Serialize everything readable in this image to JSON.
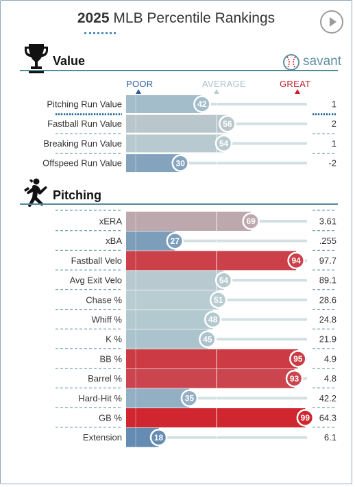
{
  "header": {
    "year": "2025",
    "title": "MLB Percentile Rankings"
  },
  "brand": {
    "name": "savant",
    "accent": "#5c8fa0"
  },
  "scale": {
    "poor": "POOR",
    "average": "AVERAGE",
    "great": "GREAT"
  },
  "colors": {
    "poor": "#2c5f9c",
    "average": "#b8cdd2",
    "great": "#d0202a",
    "track": "#d2e0e3",
    "rule": "#4e8a9a"
  },
  "sections": [
    {
      "label": "Value",
      "icon": "trophy-icon"
    },
    {
      "label": "Pitching",
      "icon": "pitcher-icon"
    }
  ],
  "chart_data": [
    {
      "type": "bar",
      "section": "Value",
      "xlim": [
        0,
        100
      ],
      "categories": [
        "Pitching Run Value",
        "Fastball Run Value",
        "Breaking Run Value",
        "Offspeed Run Value"
      ],
      "percentiles": [
        42,
        56,
        54,
        30
      ],
      "values": [
        "1",
        "2",
        "1",
        "-2"
      ]
    },
    {
      "type": "bar",
      "section": "Pitching",
      "xlim": [
        0,
        100
      ],
      "categories": [
        "xERA",
        "xBA",
        "Fastball Velo",
        "Avg Exit Velo",
        "Chase %",
        "Whiff %",
        "K %",
        "BB %",
        "Barrel %",
        "Hard-Hit %",
        "GB %",
        "Extension"
      ],
      "percentiles": [
        69,
        27,
        94,
        54,
        51,
        48,
        45,
        95,
        93,
        35,
        99,
        18
      ],
      "values": [
        "3.61",
        ".255",
        "97.7",
        "89.1",
        "28.6",
        "24.8",
        "21.9",
        "4.9",
        "4.8",
        "42.2",
        "64.3",
        "6.1"
      ]
    }
  ]
}
